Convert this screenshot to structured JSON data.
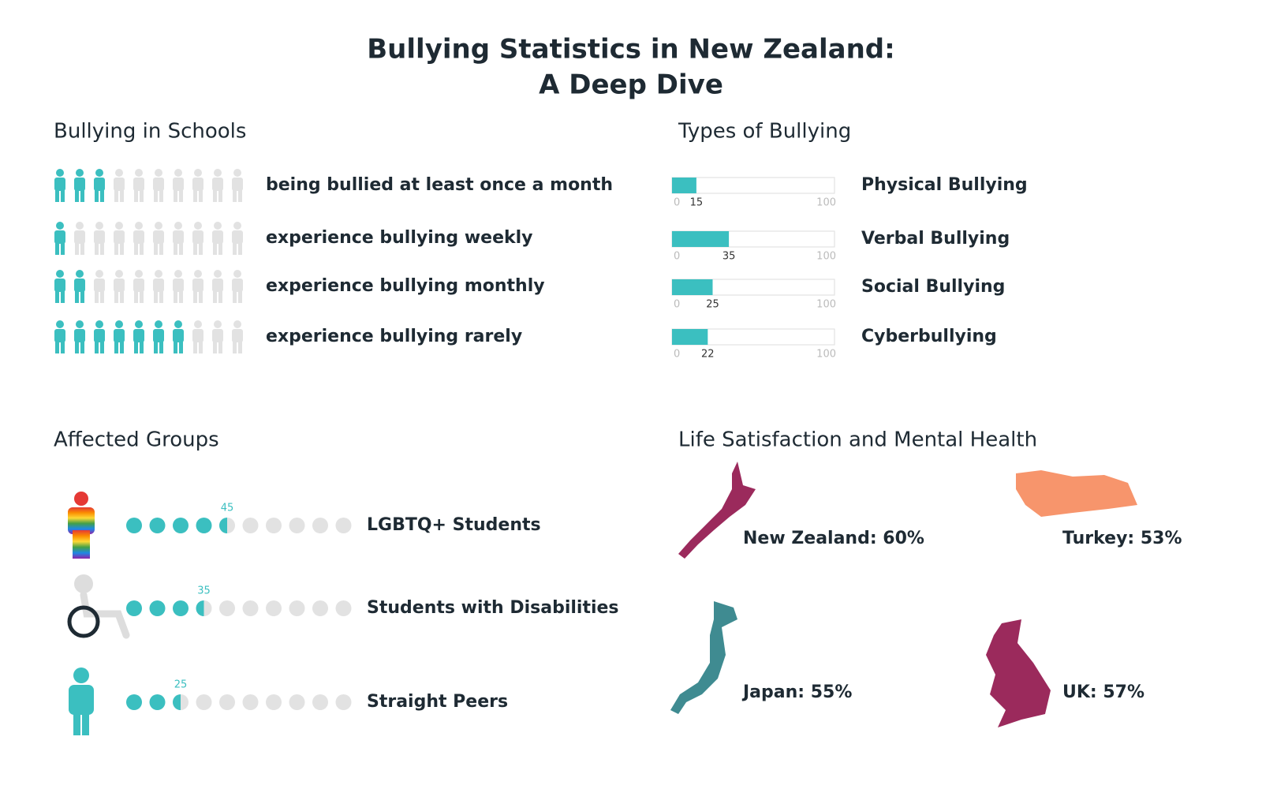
{
  "title": [
    "Bullying Statistics in New Zealand:",
    "A Deep Dive"
  ],
  "schools": {
    "heading": "Bullying in Schools",
    "icons": 10,
    "color": "#3bbfc0",
    "rest_color": "#e2e2e2",
    "rows": [
      {
        "label": "being bullied at least once a month",
        "count": 3
      },
      {
        "label": "experience bullying weekly",
        "count": 1
      },
      {
        "label": "experience bullying monthly",
        "count": 2
      },
      {
        "label": "experience bullying rarely",
        "count": 7
      }
    ]
  },
  "types": {
    "heading": "Types of Bullying",
    "color": "#3bbfc0",
    "bars": [
      {
        "label": "Physical Bullying",
        "value": 15,
        "range": [
          0,
          100
        ]
      },
      {
        "label": "Verbal Bullying",
        "value": 35,
        "range": [
          0,
          100
        ]
      },
      {
        "label": "Social Bullying",
        "value": 25,
        "range": [
          0,
          100
        ]
      },
      {
        "label": "Cyberbullying",
        "value": 22,
        "range": [
          0,
          100
        ]
      }
    ]
  },
  "affected": {
    "heading": "Affected Groups",
    "dots": 10,
    "max": 100,
    "color": "#3bbfc0",
    "rest_color": "#e2e2e2",
    "groups": [
      {
        "label": "LGBTQ+ Students",
        "value": 45
      },
      {
        "label": "Students with Disabilities",
        "value": 35
      },
      {
        "label": "Straight Peers",
        "value": 25
      }
    ]
  },
  "life": {
    "heading": "Life Satisfaction and Mental Health",
    "countries": [
      {
        "label": "New Zealand: 60%",
        "color": "#9b2a5c"
      },
      {
        "label": "Turkey: 53%",
        "color": "#f7956c"
      },
      {
        "label": "Japan: 55%",
        "color": "#3f8b91"
      },
      {
        "label": "UK: 57%",
        "color": "#9b2a5c"
      }
    ]
  }
}
